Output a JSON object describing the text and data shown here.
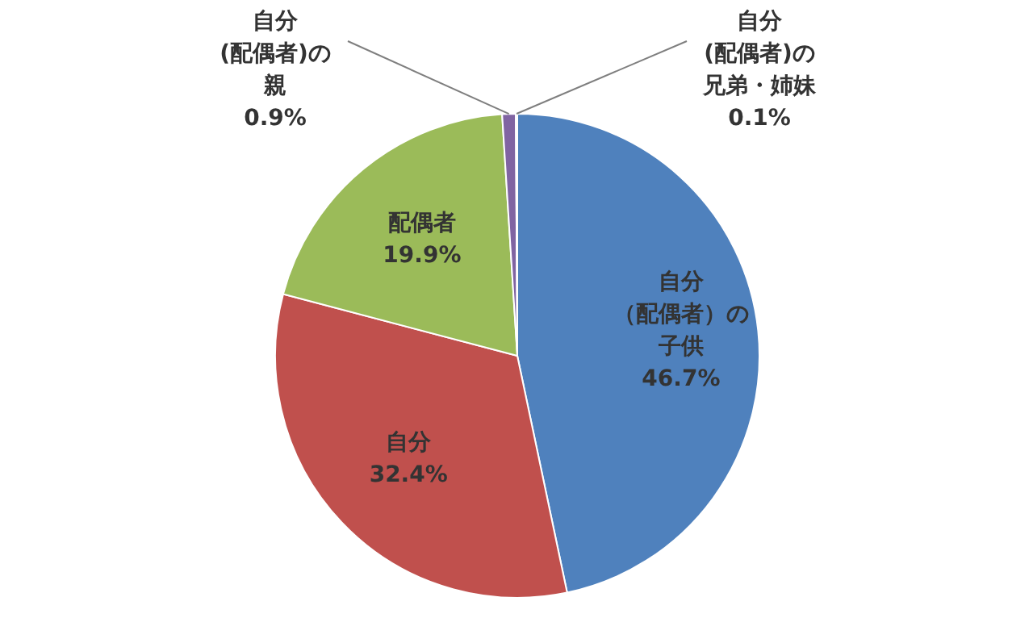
{
  "chart_data": {
    "type": "pie",
    "categories": [
      "自分（配偶者）の子供",
      "自分",
      "配偶者",
      "自分(配偶者)の親",
      "自分(配偶者)の兄弟・姉妹"
    ],
    "values": [
      46.7,
      32.4,
      19.9,
      0.9,
      0.1
    ],
    "value_labels": [
      "46.7%",
      "32.4%",
      "19.9%",
      "0.9%",
      "0.1%"
    ],
    "colors": [
      "#4f81bd",
      "#c0504d",
      "#9bbb59",
      "#8064a2",
      "#4bacc6"
    ]
  }
}
